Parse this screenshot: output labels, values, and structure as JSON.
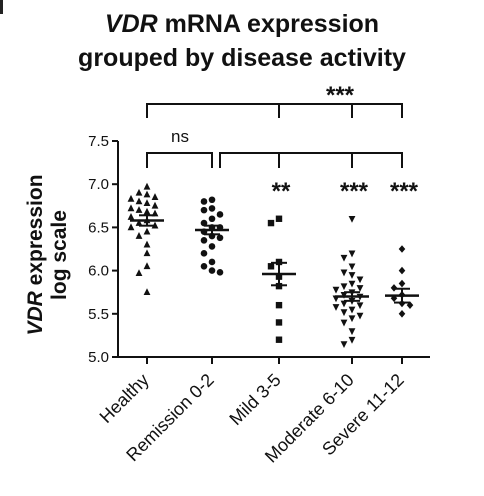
{
  "figure": {
    "title_part1_italic": "VDR",
    "title_part1_rest": " mRNA expression",
    "title_line2": "grouped by disease activity"
  },
  "chart_data": {
    "type": "scatter",
    "title": "VDR mRNA expression grouped by disease activity",
    "ylabel_italic": "VDR",
    "ylabel_rest": " expression",
    "ylabel_line2": "log scale",
    "xlabel": "",
    "ylim": [
      5.0,
      7.5
    ],
    "yticks": [
      "5.0",
      "5.5",
      "6.0",
      "6.5",
      "7.0",
      "7.5"
    ],
    "categories": [
      "Healthy",
      "Remission 0-2",
      "Mild 3-5",
      "Moderate 6-10",
      "Severe 11-12"
    ],
    "marker_shapes": [
      "triangle-up",
      "circle",
      "square",
      "triangle-down",
      "diamond"
    ],
    "means": [
      6.58,
      6.47,
      5.96,
      5.7,
      5.71
    ],
    "sem": [
      0.06,
      0.05,
      0.13,
      0.05,
      0.08
    ],
    "points": [
      [
        6.97,
        6.9,
        6.88,
        6.85,
        6.83,
        6.8,
        6.78,
        6.75,
        6.72,
        6.7,
        6.68,
        6.66,
        6.62,
        6.58,
        6.55,
        6.52,
        6.5,
        6.45,
        6.4,
        6.3,
        6.2,
        6.05,
        5.97,
        5.75
      ],
      [
        6.82,
        6.8,
        6.72,
        6.7,
        6.65,
        6.6,
        6.55,
        6.5,
        6.5,
        6.45,
        6.4,
        6.38,
        6.35,
        6.28,
        6.2,
        6.1,
        6.05,
        6.0,
        5.98
      ],
      [
        6.6,
        6.55,
        6.1,
        6.05,
        5.93,
        5.82,
        5.6,
        5.4,
        5.2
      ],
      [
        6.6,
        6.2,
        6.15,
        6.05,
        5.98,
        5.95,
        5.9,
        5.85,
        5.82,
        5.8,
        5.78,
        5.75,
        5.72,
        5.7,
        5.68,
        5.65,
        5.62,
        5.6,
        5.58,
        5.55,
        5.52,
        5.48,
        5.45,
        5.4,
        5.3,
        5.2,
        5.15
      ],
      [
        6.25,
        6.0,
        5.85,
        5.8,
        5.72,
        5.68,
        5.62,
        5.6,
        5.5
      ]
    ],
    "significance": [
      {
        "from": 0,
        "to": 1,
        "label": "ns",
        "bar": "lower"
      },
      {
        "from": 0,
        "to": 4,
        "label": "***",
        "bar": "upper",
        "drops": [
          2,
          3
        ]
      },
      {
        "label": "**",
        "group": 2
      },
      {
        "label": "***",
        "group": 3
      },
      {
        "label": "***",
        "group": 4
      }
    ],
    "grid": false,
    "legend": "none"
  }
}
